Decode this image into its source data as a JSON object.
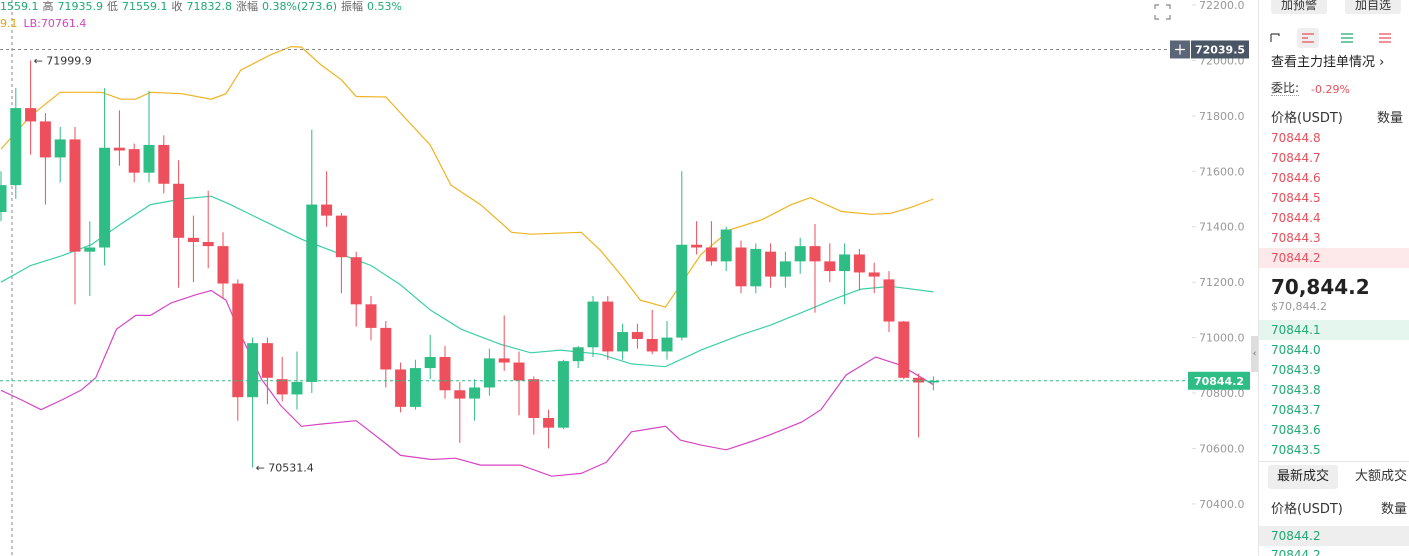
{
  "header": {
    "ohlc": [
      "1559.1",
      "高",
      "71935.9",
      "低",
      "71559.1",
      "收",
      "71832.8",
      "涨幅",
      "0.38%(273.6)",
      "振幅",
      "0.53%"
    ],
    "band_values": [
      "9.1",
      "LB:70761.4"
    ]
  },
  "chart_data": {
    "type": "candlestick",
    "up_color": "#2ebd85",
    "down_color": "#ee4f5c",
    "open": [
      71453,
      71550,
      71828,
      71780,
      71650,
      71715,
      71310,
      71325,
      71685,
      71680,
      71595,
      71695,
      71555,
      71360,
      71345,
      71330,
      71195,
      70785,
      70980,
      70850,
      70795,
      70840,
      71480,
      71440,
      71290,
      71120,
      71035,
      70885,
      70750,
      70890,
      70930,
      70810,
      70780,
      70820,
      70925,
      70910,
      70850,
      70710,
      70675,
      70915,
      70965,
      71130,
      70950,
      71020,
      70995,
      70950,
      71000,
      71335,
      71325,
      71275,
      71325,
      71185,
      71310,
      71220,
      71275,
      71330,
      71275,
      71240,
      71300,
      71235,
      71210,
      71058,
      70855,
      70838
    ],
    "high": [
      71600,
      71900,
      71999.9,
      71810,
      71760,
      71760,
      71420,
      71900,
      71820,
      71700,
      71890,
      71730,
      71640,
      71440,
      71530,
      71380,
      71210,
      71000,
      71000,
      70930,
      70950,
      71750,
      71600,
      71450,
      71310,
      71150,
      71060,
      70910,
      70920,
      71010,
      70970,
      70840,
      70850,
      70960,
      71080,
      70950,
      70860,
      70740,
      70920,
      70970,
      71150,
      71150,
      71050,
      71050,
      71100,
      71060,
      71600,
      71420,
      71420,
      71400,
      71350,
      71340,
      71340,
      71310,
      71360,
      71410,
      71340,
      71340,
      71320,
      71270,
      71240,
      71060,
      70870,
      70860
    ],
    "low": [
      71420,
      71500,
      71660,
      71480,
      71560,
      71120,
      71150,
      71260,
      71620,
      71560,
      71560,
      71520,
      71180,
      71200,
      71250,
      71140,
      70700,
      70531.4,
      70760,
      70770,
      70740,
      70800,
      71400,
      71160,
      71040,
      70990,
      70820,
      70730,
      70740,
      70850,
      70780,
      70620,
      70700,
      70790,
      70880,
      70720,
      70650,
      70600,
      70670,
      70890,
      70930,
      70920,
      70920,
      70960,
      70940,
      70920,
      70990,
      71300,
      71260,
      71240,
      71160,
      71160,
      71180,
      71180,
      71230,
      71090,
      71200,
      71120,
      71170,
      71160,
      71020,
      70850,
      70640,
      70810
    ],
    "close": [
      71550,
      71828,
      71780,
      71650,
      71715,
      71310,
      71325,
      71685,
      71675,
      71595,
      71695,
      71555,
      71360,
      71345,
      71330,
      71195,
      70785,
      70980,
      70855,
      70795,
      70840,
      71480,
      71440,
      71290,
      71120,
      71035,
      70885,
      70750,
      70890,
      70930,
      70810,
      70780,
      70820,
      70925,
      70910,
      70845,
      70710,
      70675,
      70915,
      70965,
      71130,
      70950,
      71020,
      70995,
      70950,
      71000,
      71335,
      71325,
      71275,
      71390,
      71185,
      71320,
      71220,
      71275,
      71330,
      71275,
      71240,
      71300,
      71235,
      71220,
      71058,
      70855,
      70838,
      70844.2
    ],
    "lines": [
      {
        "color": "#eeb321",
        "x": [
          0,
          2,
          4,
          6.8,
          8.1,
          9.1,
          10.1,
          12.2,
          14.2,
          15.2,
          16.2,
          18.2,
          19.6,
          20.3,
          21.6,
          23,
          24,
          26,
          27,
          29,
          30.4,
          32.4,
          34.5,
          35.8,
          39.2,
          40.5,
          41.9,
          43.2,
          44.9,
          45.9,
          47.3,
          49.3,
          51.4,
          53.4,
          54.7,
          56.8,
          58.8,
          60.1,
          61.5,
          63
        ],
        "values": [
          71680,
          71800,
          71885,
          71885,
          71860,
          71860,
          71885,
          71880,
          71860,
          71880,
          71965,
          72020,
          72050,
          72048,
          71985,
          71930,
          71870,
          71868,
          71810,
          71695,
          71550,
          71480,
          71380,
          71373,
          71380,
          71315,
          71225,
          71135,
          71110,
          71190,
          71300,
          71390,
          71425,
          71480,
          71505,
          71455,
          71445,
          71448,
          71470,
          71500
        ]
      },
      {
        "color": "#3ccfa8",
        "x": [
          0,
          2,
          4.1,
          6.1,
          8.1,
          10.1,
          12.2,
          14.2,
          15.5,
          17.6,
          20.3,
          23,
          25,
          27,
          29,
          31.1,
          33.8,
          35.8,
          37.8,
          40.5,
          42.6,
          44.9,
          47.3,
          50,
          52,
          54.1,
          56.1,
          58.1,
          60.1,
          63
        ],
        "values": [
          71200,
          71260,
          71295,
          71335,
          71410,
          71480,
          71500,
          71510,
          71480,
          71425,
          71355,
          71300,
          71260,
          71190,
          71100,
          71030,
          70975,
          70945,
          70955,
          70940,
          70905,
          70895,
          70955,
          71010,
          71045,
          71090,
          71135,
          71175,
          71185,
          71165
        ]
      },
      {
        "color": "#d645c4",
        "x": [
          0,
          1.4,
          2.7,
          4.1,
          5.4,
          6.4,
          7.8,
          9.1,
          10.1,
          11.5,
          13.2,
          14.2,
          15.2,
          16.2,
          17.6,
          18.9,
          20.3,
          21.6,
          24,
          25.7,
          27,
          29.1,
          30.7,
          32.4,
          35.1,
          37.2,
          39.2,
          40.9,
          42.6,
          44.9,
          45.9,
          47.3,
          49,
          50.7,
          52,
          54.1,
          55.4,
          57.1,
          59.1,
          60.8,
          63
        ],
        "values": [
          70810,
          70775,
          70740,
          70775,
          70810,
          70855,
          71030,
          71080,
          71080,
          71125,
          71155,
          71170,
          71135,
          71010,
          70850,
          70755,
          70680,
          70688,
          70700,
          70630,
          70575,
          70560,
          70565,
          70540,
          70540,
          70500,
          70510,
          70550,
          70660,
          70680,
          70630,
          70612,
          70595,
          70625,
          70650,
          70695,
          70740,
          70865,
          70930,
          70900,
          70830
        ]
      }
    ],
    "annotations": [
      "← 71999.9",
      "← 70531.4"
    ],
    "ylim": [
      70212,
      72218
    ],
    "yticks": [
      {
        "value": 72200,
        "label": "72200.0"
      },
      {
        "value": 72000,
        "label": "72000.0"
      },
      {
        "value": 71800,
        "label": "71800.0"
      },
      {
        "value": 71600,
        "label": "71600.0"
      },
      {
        "value": 71400,
        "label": "71400.0"
      },
      {
        "value": 71200,
        "label": "71200.0"
      },
      {
        "value": 71000,
        "label": "71000.0"
      },
      {
        "value": 70800,
        "label": "70800.0"
      },
      {
        "value": 70600,
        "label": "70600.0"
      },
      {
        "value": 70400,
        "label": "70400.0"
      }
    ],
    "crosshair_price": 72039.5,
    "last_price": 70844.2,
    "grid": false
  },
  "panel": {
    "buttons": [
      "加预警",
      "加自选"
    ],
    "depth_link": "查看主力挂单情况",
    "ratio_label": "委比:",
    "ratio_value": "-0.29%",
    "book_header": [
      "价格(USDT)",
      "数量"
    ],
    "asks": [
      "70844.8",
      "70844.7",
      "70844.6",
      "70844.5",
      "70844.4",
      "70844.3",
      "70844.2"
    ],
    "price": "70,844.2",
    "price_usd": "$70,844.2",
    "bids": [
      "70844.1",
      "70844.0",
      "70843.9",
      "70843.8",
      "70843.7",
      "70843.6",
      "70843.5"
    ],
    "tabs": [
      "最新成交",
      "大额成交"
    ],
    "trades_header": [
      "价格(USDT)",
      "数量"
    ],
    "trades": [
      "70844.2",
      "70844.2"
    ]
  }
}
